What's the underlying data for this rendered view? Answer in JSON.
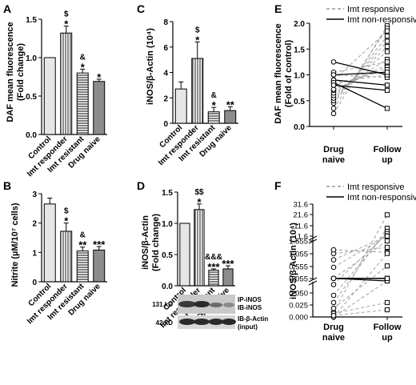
{
  "chart_data": [
    {
      "panel": "A",
      "type": "bar",
      "ylabel_1": "DAF mean fluorescence",
      "ylabel_2": "(Fold change)",
      "categories": [
        "Control",
        "Imt responder",
        "Imt resistant",
        "Drug naive"
      ],
      "values": [
        1.0,
        1.32,
        0.8,
        0.69
      ],
      "errors": [
        0,
        0.09,
        0.05,
        0.03
      ],
      "annotations": [
        [],
        [
          "$",
          "*"
        ],
        [
          "&",
          "*"
        ],
        [
          "*"
        ]
      ],
      "ylim": [
        0,
        1.5
      ],
      "yticks": [
        "0.0",
        "0.5",
        "1.0",
        "1.5"
      ]
    },
    {
      "panel": "B",
      "type": "bar",
      "ylabel_1": "Nitrite (µM/10⁷ cells)",
      "categories": [
        "Control",
        "Imt responder",
        "Imt resistant",
        "Drug naive"
      ],
      "values": [
        2.65,
        1.72,
        1.05,
        1.08
      ],
      "errors": [
        0.2,
        0.28,
        0.13,
        0.12
      ],
      "annotations": [
        [],
        [
          "$",
          "*"
        ],
        [
          "&",
          "**"
        ],
        [
          "***"
        ]
      ],
      "ylim": [
        0,
        3
      ],
      "yticks": [
        "0",
        "1",
        "2",
        "3"
      ]
    },
    {
      "panel": "C",
      "type": "bar",
      "ylabel_1": "iNOS/β-Actin (10⁴)",
      "categories": [
        "Control",
        "Imt responder",
        "Imt resistant",
        "Drug naive"
      ],
      "values": [
        2.7,
        5.1,
        0.9,
        1.0
      ],
      "errors": [
        0.55,
        1.3,
        0.35,
        0.3
      ],
      "annotations": [
        [],
        [
          "$",
          "*"
        ],
        [
          "&",
          "*"
        ],
        [
          "**"
        ]
      ],
      "ylim": [
        0,
        8
      ],
      "yticks": [
        "0",
        "2",
        "4",
        "6",
        "8"
      ]
    },
    {
      "panel": "D",
      "type": "bar",
      "ylabel_1": "iNOS/β-Actin",
      "ylabel_2": "(Fold change)",
      "categories": [
        "Control",
        "Imt responder",
        "Imt resistant",
        "Drug naive"
      ],
      "values": [
        1.0,
        1.22,
        0.25,
        0.27
      ],
      "errors": [
        0,
        0.09,
        0.02,
        0.05
      ],
      "annotations": [
        [],
        [
          "$$",
          "*"
        ],
        [
          "&&&",
          "***"
        ],
        [
          "***"
        ]
      ],
      "ylim": [
        0,
        1.5
      ],
      "yticks": [
        "0.0",
        "0.5",
        "1.0",
        "1.5"
      ],
      "blot": {
        "row1_kd": "131 kD",
        "row1_label_1": "IP-iNOS",
        "row1_label_2": "IB-iNOS",
        "row2_kd": "42 kD",
        "row2_label_1": "IB-β-Actin",
        "row2_label_2": "(input)"
      }
    },
    {
      "panel": "E",
      "type": "line",
      "ylabel_1": "DAF mean fluorescence",
      "ylabel_2": "(Fold of control)",
      "x_1": [
        "Drug",
        "Follow"
      ],
      "x_2": [
        "naive",
        "up"
      ],
      "ylim": [
        0,
        2.0
      ],
      "yticks": [
        "0.0",
        "0.5",
        "1.0",
        "1.5",
        "2.0"
      ],
      "legend": [
        "Imt responsive",
        "Imt non-responsive"
      ],
      "responsive": [
        [
          0.25,
          1.95
        ],
        [
          0.35,
          1.9
        ],
        [
          0.45,
          1.75
        ],
        [
          0.5,
          1.65
        ],
        [
          0.55,
          1.55
        ],
        [
          0.6,
          1.45
        ],
        [
          0.65,
          1.3
        ],
        [
          0.7,
          1.2
        ],
        [
          0.72,
          1.15
        ],
        [
          0.8,
          1.1
        ],
        [
          0.85,
          1.0
        ],
        [
          1.0,
          0.95
        ],
        [
          1.05,
          1.25
        ],
        [
          0.9,
          1.85
        ]
      ],
      "non_responsive": [
        [
          1.25,
          1.0
        ],
        [
          1.0,
          1.05
        ],
        [
          0.9,
          0.8
        ],
        [
          0.85,
          0.35
        ],
        [
          0.8,
          0.7
        ]
      ]
    },
    {
      "panel": "F",
      "type": "line",
      "ylabel_1": "iNOS/β-Actin (10⁴)",
      "x_1": [
        "Drug",
        "Follow"
      ],
      "x_2": [
        "naive",
        "up"
      ],
      "yticks": [
        "0.000",
        "0.025",
        "0.050",
        "0.055",
        "0.555",
        "1.055",
        "1.555",
        "1.6",
        "11.6",
        "21.6",
        "31.6"
      ],
      "legend": [
        "Imt responsive",
        "Imt non-responsive"
      ],
      "responsive": [
        [
          0.007,
          21.6
        ],
        [
          0.02,
          9.0
        ],
        [
          0.03,
          6.0
        ],
        [
          0.045,
          4.0
        ],
        [
          0.055,
          1.555
        ],
        [
          0.5,
          1.8
        ],
        [
          0.8,
          1.6
        ],
        [
          1.05,
          1.3
        ],
        [
          1.2,
          1.1
        ],
        [
          0.0,
          1.055
        ],
        [
          0.012,
          0.555
        ],
        [
          0.0,
          0.05
        ],
        [
          0.005,
          0.02
        ],
        [
          0.002,
          0.01
        ]
      ],
      "non_responsive": [
        [
          0.055,
          0.055
        ],
        [
          0.058,
          0.053
        ],
        [
          0.057,
          0.05
        ],
        [
          0.056,
          0.052
        ]
      ]
    }
  ]
}
